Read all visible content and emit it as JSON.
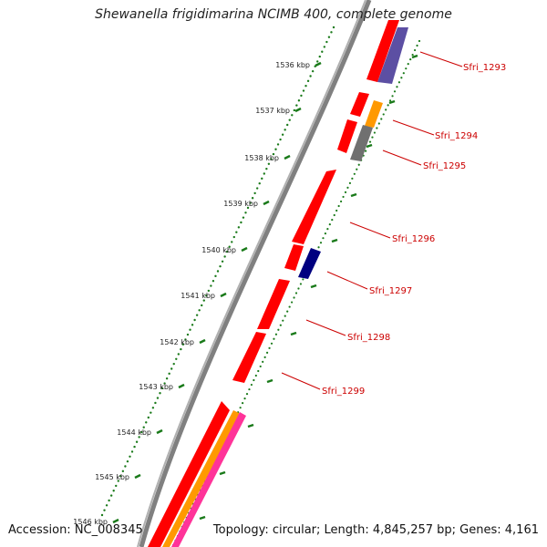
{
  "title": "Shewanella frigidimarina NCIMB 400, complete genome",
  "accession_label": "Accession: NC_008345",
  "summary_label": "Topology: circular; Length: 4,845,257 bp; Genes: 4,161",
  "ruler": {
    "ticks": [
      "1536 kbp",
      "1537 kbp",
      "1538 kbp",
      "1539 kbp",
      "1540 kbp",
      "1541 kbp",
      "1542 kbp",
      "1543 kbp",
      "1544 kbp",
      "1545 kbp",
      "1546 kbp"
    ]
  },
  "gene_labels": [
    "Sfri_1293",
    "Sfri_1294",
    "Sfri_1295",
    "Sfri_1296",
    "Sfri_1297",
    "Sfri_1298",
    "Sfri_1299"
  ],
  "colors": {
    "backbone": "#808080",
    "gene": "#ff0000",
    "tick": "#1a7a1a",
    "label": "#cc0000",
    "purple": "#5c4fa3",
    "orange": "#ff9900",
    "gray": "#707070",
    "navy": "#000080",
    "pink": "#ff3399"
  }
}
